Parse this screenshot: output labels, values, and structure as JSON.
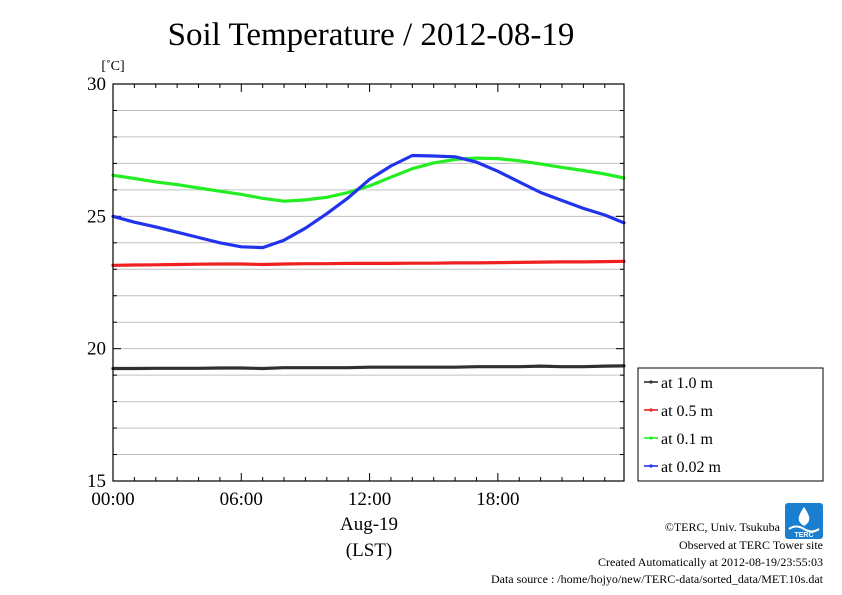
{
  "chart_data": {
    "type": "line",
    "title": "Soil Temperature / 2012-08-19",
    "ylabel": "[˚C]",
    "ylim": [
      15,
      30
    ],
    "yticks": [
      15,
      20,
      25,
      30
    ],
    "ytick_labels": [
      "15",
      "20",
      "25",
      "30"
    ],
    "xlim": [
      0,
      23.9
    ],
    "xticks": [
      0,
      6,
      12,
      18
    ],
    "xtick_labels": [
      "00:00",
      "06:00",
      "12:00",
      "18:00"
    ],
    "xdate_label": "Aug-19",
    "xlabel": "(LST)",
    "grid": true,
    "legend_position": "right",
    "x": [
      0,
      1,
      2,
      3,
      4,
      5,
      6,
      7,
      8,
      9,
      10,
      11,
      12,
      13,
      14,
      15,
      16,
      17,
      18,
      19,
      20,
      21,
      22,
      23,
      23.9
    ],
    "series": [
      {
        "name": "at 1.0 m",
        "color": "#303030",
        "values": [
          19.25,
          19.25,
          19.26,
          19.26,
          19.26,
          19.27,
          19.27,
          19.25,
          19.28,
          19.28,
          19.28,
          19.28,
          19.3,
          19.3,
          19.3,
          19.3,
          19.3,
          19.32,
          19.32,
          19.32,
          19.34,
          19.32,
          19.32,
          19.34,
          19.35
        ]
      },
      {
        "name": "at 0.5 m",
        "color": "#ee2020",
        "values": [
          23.15,
          23.16,
          23.17,
          23.18,
          23.19,
          23.2,
          23.2,
          23.18,
          23.2,
          23.21,
          23.21,
          23.22,
          23.22,
          23.22,
          23.23,
          23.23,
          23.24,
          23.24,
          23.25,
          23.26,
          23.27,
          23.28,
          23.28,
          23.29,
          23.3
        ]
      },
      {
        "name": "at 0.1 m",
        "color": "#22ee22",
        "values": [
          26.55,
          26.43,
          26.3,
          26.2,
          26.07,
          25.95,
          25.83,
          25.68,
          25.57,
          25.62,
          25.72,
          25.9,
          26.15,
          26.48,
          26.8,
          27.02,
          27.15,
          27.2,
          27.18,
          27.1,
          26.98,
          26.85,
          26.73,
          26.6,
          26.45
        ]
      },
      {
        "name": "at 0.02 m",
        "color": "#2233ee",
        "values": [
          25.0,
          24.78,
          24.6,
          24.4,
          24.2,
          24.0,
          23.85,
          23.82,
          24.1,
          24.55,
          25.1,
          25.7,
          26.4,
          26.9,
          27.3,
          27.28,
          27.25,
          27.05,
          26.7,
          26.3,
          25.9,
          25.6,
          25.3,
          25.05,
          24.75
        ]
      }
    ]
  },
  "credits": {
    "copyright": "©TERC, Univ. Tsukuba",
    "observed": "Observed at TERC Tower site",
    "created": "Created Automatically at 2012-08-19/23:55:03",
    "source": "Data source : /home/hojyo/new/TERC-data/sorted_data/MET.10s.dat",
    "logo_text": "TERC",
    "logo_color": "#1a7fd0"
  }
}
